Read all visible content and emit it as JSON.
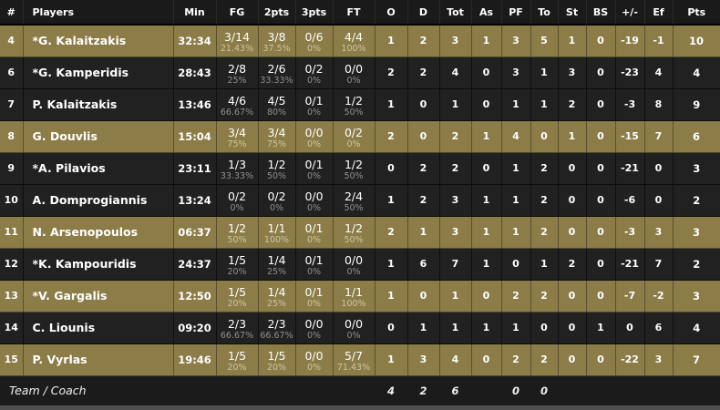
{
  "colors": {
    "on_court_row": "#8b7c48",
    "dark_row": "#212121",
    "header_bg": "#1a1a1a",
    "percent_text_dark": "#8f8f8f",
    "percent_text_gold": "#cfc5a0",
    "bottom_strip": "#4f4f4f"
  },
  "columns": [
    "#",
    "Players",
    "Min",
    "FG",
    "2pts",
    "3pts",
    "FT",
    "O",
    "D",
    "Tot",
    "As",
    "PF",
    "To",
    "St",
    "BS",
    "+/-",
    "Ef",
    "Pts"
  ],
  "players": [
    {
      "num": "4",
      "name": "*G. Kalaitzakis",
      "min": "32:34",
      "on_court": true,
      "fg": {
        "m": "3/14",
        "p": "21.43%"
      },
      "p2": {
        "m": "3/8",
        "p": "37.5%"
      },
      "p3": {
        "m": "0/6",
        "p": "0%"
      },
      "ft": {
        "m": "4/4",
        "p": "100%"
      },
      "o": "1",
      "d": "2",
      "tot": "3",
      "as": "1",
      "pf": "3",
      "to": "5",
      "st": "1",
      "bs": "0",
      "pm": "-19",
      "ef": "-1",
      "pts": "10"
    },
    {
      "num": "6",
      "name": "*G. Kamperidis",
      "min": "28:43",
      "on_court": false,
      "fg": {
        "m": "2/8",
        "p": "25%"
      },
      "p2": {
        "m": "2/6",
        "p": "33.33%"
      },
      "p3": {
        "m": "0/2",
        "p": "0%"
      },
      "ft": {
        "m": "0/0",
        "p": "0%"
      },
      "o": "2",
      "d": "2",
      "tot": "4",
      "as": "0",
      "pf": "3",
      "to": "1",
      "st": "3",
      "bs": "0",
      "pm": "-23",
      "ef": "4",
      "pts": "4"
    },
    {
      "num": "7",
      "name": "P. Kalaitzakis",
      "min": "13:46",
      "on_court": false,
      "fg": {
        "m": "4/6",
        "p": "66.67%"
      },
      "p2": {
        "m": "4/5",
        "p": "80%"
      },
      "p3": {
        "m": "0/1",
        "p": "0%"
      },
      "ft": {
        "m": "1/2",
        "p": "50%"
      },
      "o": "1",
      "d": "0",
      "tot": "1",
      "as": "0",
      "pf": "1",
      "to": "1",
      "st": "2",
      "bs": "0",
      "pm": "-3",
      "ef": "8",
      "pts": "9"
    },
    {
      "num": "8",
      "name": "G. Douvlis",
      "min": "15:04",
      "on_court": true,
      "fg": {
        "m": "3/4",
        "p": "75%"
      },
      "p2": {
        "m": "3/4",
        "p": "75%"
      },
      "p3": {
        "m": "0/0",
        "p": "0%"
      },
      "ft": {
        "m": "0/2",
        "p": "0%"
      },
      "o": "2",
      "d": "0",
      "tot": "2",
      "as": "1",
      "pf": "4",
      "to": "0",
      "st": "1",
      "bs": "0",
      "pm": "-15",
      "ef": "7",
      "pts": "6"
    },
    {
      "num": "9",
      "name": "*A. Pilavios",
      "min": "23:11",
      "on_court": false,
      "fg": {
        "m": "1/3",
        "p": "33.33%"
      },
      "p2": {
        "m": "1/2",
        "p": "50%"
      },
      "p3": {
        "m": "0/1",
        "p": "0%"
      },
      "ft": {
        "m": "1/2",
        "p": "50%"
      },
      "o": "0",
      "d": "2",
      "tot": "2",
      "as": "0",
      "pf": "1",
      "to": "2",
      "st": "0",
      "bs": "0",
      "pm": "-21",
      "ef": "0",
      "pts": "3"
    },
    {
      "num": "10",
      "name": "A. Domprogiannis",
      "min": "13:24",
      "on_court": false,
      "fg": {
        "m": "0/2",
        "p": "0%"
      },
      "p2": {
        "m": "0/2",
        "p": "0%"
      },
      "p3": {
        "m": "0/0",
        "p": "0%"
      },
      "ft": {
        "m": "2/4",
        "p": "50%"
      },
      "o": "1",
      "d": "2",
      "tot": "3",
      "as": "1",
      "pf": "1",
      "to": "2",
      "st": "0",
      "bs": "0",
      "pm": "-6",
      "ef": "0",
      "pts": "2"
    },
    {
      "num": "11",
      "name": "N. Arsenopoulos",
      "min": "06:37",
      "on_court": true,
      "fg": {
        "m": "1/2",
        "p": "50%"
      },
      "p2": {
        "m": "1/1",
        "p": "100%"
      },
      "p3": {
        "m": "0/1",
        "p": "0%"
      },
      "ft": {
        "m": "1/2",
        "p": "50%"
      },
      "o": "2",
      "d": "1",
      "tot": "3",
      "as": "1",
      "pf": "1",
      "to": "2",
      "st": "0",
      "bs": "0",
      "pm": "-3",
      "ef": "3",
      "pts": "3"
    },
    {
      "num": "12",
      "name": "*K. Kampouridis",
      "min": "24:37",
      "on_court": false,
      "fg": {
        "m": "1/5",
        "p": "20%"
      },
      "p2": {
        "m": "1/4",
        "p": "25%"
      },
      "p3": {
        "m": "0/1",
        "p": "0%"
      },
      "ft": {
        "m": "0/0",
        "p": "0%"
      },
      "o": "1",
      "d": "6",
      "tot": "7",
      "as": "1",
      "pf": "0",
      "to": "1",
      "st": "2",
      "bs": "0",
      "pm": "-21",
      "ef": "7",
      "pts": "2"
    },
    {
      "num": "13",
      "name": "*V. Gargalis",
      "min": "12:50",
      "on_court": true,
      "fg": {
        "m": "1/5",
        "p": "20%"
      },
      "p2": {
        "m": "1/4",
        "p": "25%"
      },
      "p3": {
        "m": "0/1",
        "p": "0%"
      },
      "ft": {
        "m": "1/1",
        "p": "100%"
      },
      "o": "1",
      "d": "0",
      "tot": "1",
      "as": "0",
      "pf": "2",
      "to": "2",
      "st": "0",
      "bs": "0",
      "pm": "-7",
      "ef": "-2",
      "pts": "3"
    },
    {
      "num": "14",
      "name": "C. Liounis",
      "min": "09:20",
      "on_court": false,
      "fg": {
        "m": "2/3",
        "p": "66.67%"
      },
      "p2": {
        "m": "2/3",
        "p": "66.67%"
      },
      "p3": {
        "m": "0/0",
        "p": "0%"
      },
      "ft": {
        "m": "0/0",
        "p": "0%"
      },
      "o": "0",
      "d": "1",
      "tot": "1",
      "as": "1",
      "pf": "1",
      "to": "0",
      "st": "0",
      "bs": "1",
      "pm": "0",
      "ef": "6",
      "pts": "4"
    },
    {
      "num": "15",
      "name": "P. Vyrlas",
      "min": "19:46",
      "on_court": true,
      "fg": {
        "m": "1/5",
        "p": "20%"
      },
      "p2": {
        "m": "1/5",
        "p": "20%"
      },
      "p3": {
        "m": "0/0",
        "p": "0%"
      },
      "ft": {
        "m": "5/7",
        "p": "71.43%"
      },
      "o": "1",
      "d": "3",
      "tot": "4",
      "as": "0",
      "pf": "2",
      "to": "2",
      "st": "0",
      "bs": "0",
      "pm": "-22",
      "ef": "3",
      "pts": "7"
    }
  ],
  "team_row": {
    "label": "Team / Coach",
    "o": "4",
    "d": "2",
    "tot": "6",
    "as": "",
    "pf": "0",
    "to": "0",
    "st": "",
    "bs": "",
    "pm": "",
    "ef": "",
    "pts": ""
  }
}
